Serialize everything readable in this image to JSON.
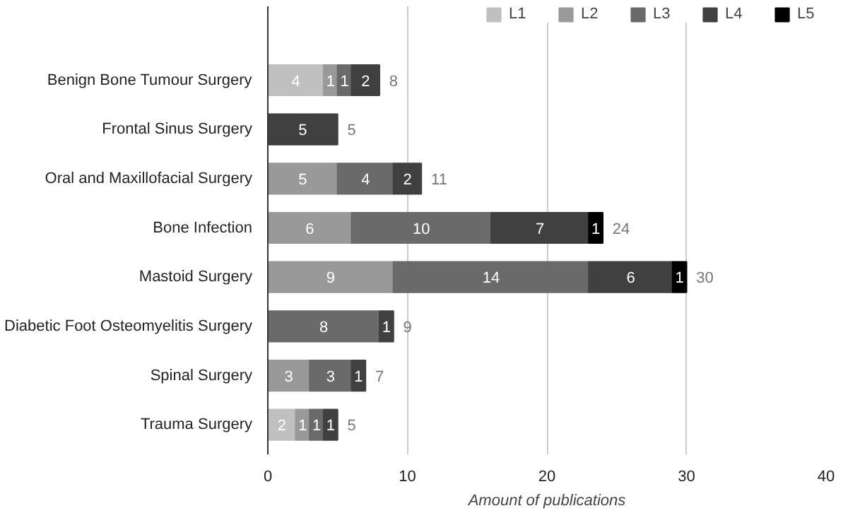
{
  "chart_data": {
    "type": "bar",
    "orientation": "horizontal",
    "stacked": true,
    "xlabel": "Amount of publications",
    "categories": [
      "Benign Bone Tumour Surgery",
      "Frontal Sinus Surgery",
      "Oral and Maxillofacial Surgery",
      "Bone Infection",
      "Mastoid Surgery",
      "Diabetic Foot Osteomyelitis Surgery",
      "Spinal Surgery",
      "Trauma Surgery"
    ],
    "series": [
      {
        "name": "L1",
        "color": "#c0c0c0",
        "values": [
          4,
          null,
          null,
          null,
          null,
          null,
          null,
          2
        ]
      },
      {
        "name": "L2",
        "color": "#999999",
        "values": [
          1,
          null,
          5,
          6,
          9,
          null,
          3,
          1
        ]
      },
      {
        "name": "L3",
        "color": "#6a6a6a",
        "values": [
          1,
          null,
          4,
          10,
          14,
          8,
          3,
          1
        ]
      },
      {
        "name": "L4",
        "color": "#404040",
        "values": [
          2,
          5,
          2,
          7,
          6,
          1,
          1,
          1
        ]
      },
      {
        "name": "L5",
        "color": "#000000",
        "values": [
          null,
          null,
          null,
          1,
          1,
          null,
          null,
          null
        ]
      }
    ],
    "totals": [
      "8",
      "5",
      "11",
      "24",
      "30",
      "9",
      "7",
      "5"
    ],
    "xlim": [
      0,
      40
    ],
    "xticks": [
      0,
      10,
      20,
      30,
      40
    ],
    "grid": "x",
    "legend": "top right",
    "data_labels": true
  }
}
